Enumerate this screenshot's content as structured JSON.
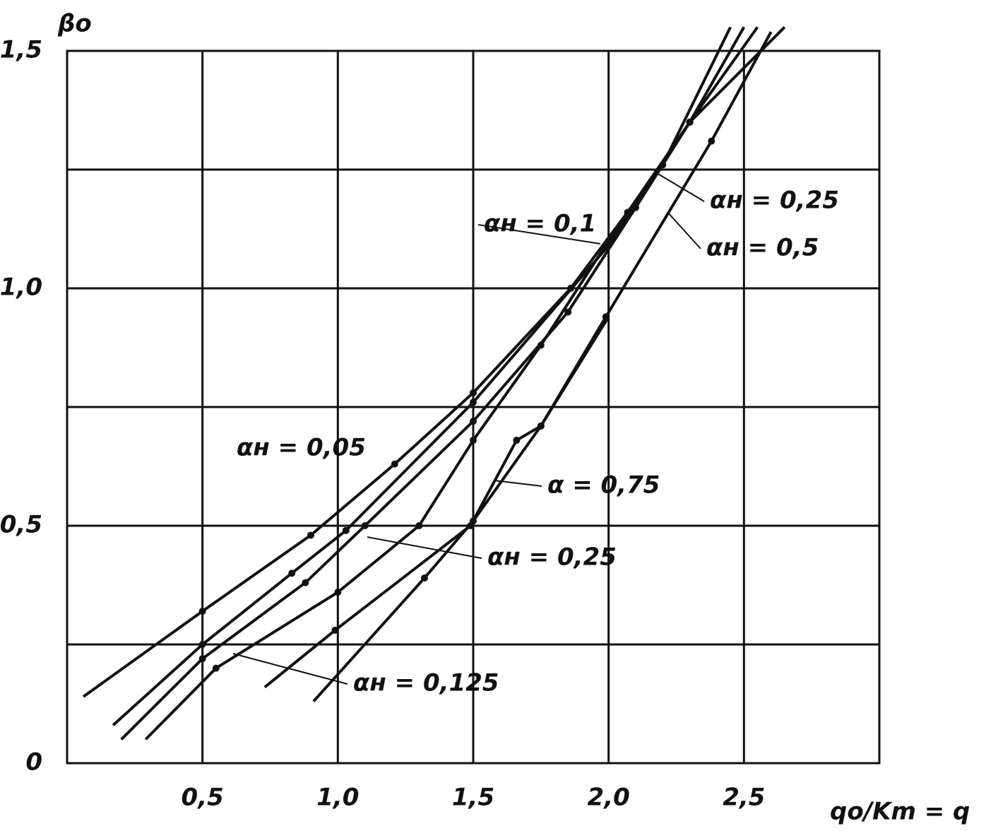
{
  "chart_data": {
    "type": "line",
    "ylabel": "βo",
    "xlabel": "qo/Km = q",
    "xlim": [
      0,
      3.0
    ],
    "ylim": [
      0,
      1.5
    ],
    "xticks": [
      {
        "value": 0.5,
        "label": "0,5"
      },
      {
        "value": 1.0,
        "label": "1,0"
      },
      {
        "value": 1.5,
        "label": "1,5"
      },
      {
        "value": 2.0,
        "label": "2,0"
      },
      {
        "value": 2.5,
        "label": "2,5"
      }
    ],
    "yticks": [
      0,
      {
        "value": 0.5,
        "label": "0,5"
      },
      {
        "value": 1.0,
        "label": "1,0"
      },
      {
        "value": 1.5,
        "label": "1,5"
      }
    ],
    "yminor": [
      0.25,
      0.75,
      1.25
    ],
    "grid": true,
    "color": "#111111",
    "series": [
      {
        "x": [
          0.06,
          0.5,
          0.9,
          1.21,
          1.5,
          1.86,
          2.07,
          2.3,
          2.5
        ],
        "values": [
          0.14,
          0.32,
          0.48,
          0.63,
          0.78,
          1.0,
          1.16,
          1.35,
          1.55
        ]
      },
      {
        "x": [
          0.17,
          0.5,
          0.83,
          1.03,
          1.5,
          2.0,
          2.2,
          2.45
        ],
        "values": [
          0.08,
          0.25,
          0.4,
          0.49,
          0.76,
          1.09,
          1.26,
          1.55
        ]
      },
      {
        "x": [
          0.2,
          0.5,
          0.88,
          1.1,
          1.5,
          1.85,
          2.1,
          2.3,
          2.55
        ],
        "values": [
          0.05,
          0.22,
          0.38,
          0.5,
          0.72,
          0.95,
          1.17,
          1.35,
          1.55
        ]
      },
      {
        "x": [
          0.29,
          0.55,
          1.0,
          1.3,
          1.5,
          1.75,
          2.0,
          2.3,
          2.65
        ],
        "values": [
          0.05,
          0.2,
          0.36,
          0.5,
          0.68,
          0.88,
          1.1,
          1.35,
          1.55
        ]
      },
      {
        "x": [
          0.73,
          0.99,
          1.49,
          1.66,
          1.75,
          2.0
        ],
        "values": [
          0.16,
          0.28,
          0.5,
          0.68,
          0.71,
          0.94
        ]
      },
      {
        "x": [
          0.91,
          1.32,
          1.5,
          1.75,
          1.99,
          2.38,
          2.6
        ],
        "values": [
          0.13,
          0.39,
          0.51,
          0.71,
          0.94,
          1.31,
          1.54
        ]
      }
    ],
    "annotations": [
      "αн = 0,25",
      "αн = 0,5",
      "αн = 0,1",
      "αн = 0,05",
      "α = 0,75",
      "αн = 0,25",
      "αн = 0,125"
    ]
  }
}
